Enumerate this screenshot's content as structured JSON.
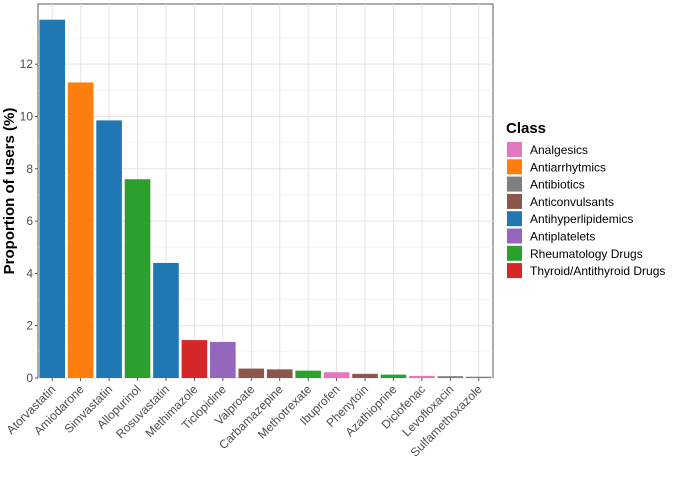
{
  "chart_data": {
    "type": "bar",
    "ylabel": "Proportion of users (%)",
    "xlabel": "",
    "ylim": [
      0,
      14.3
    ],
    "yticks": [
      0,
      2,
      4,
      6,
      8,
      10,
      12
    ],
    "grid": true,
    "legend": {
      "title": "Class",
      "position": "right"
    },
    "classes": [
      {
        "name": "Analgesics",
        "color": "#e377c2"
      },
      {
        "name": "Antiarrhytmics",
        "color": "#ff7f0e"
      },
      {
        "name": "Antibiotics",
        "color": "#7f7f7f"
      },
      {
        "name": "Anticonvulsants",
        "color": "#8c564b"
      },
      {
        "name": "Antihyperlipidemics",
        "color": "#1f77b4"
      },
      {
        "name": "Antiplatelets",
        "color": "#9467bd"
      },
      {
        "name": "Rheumatology Drugs",
        "color": "#2ca02c"
      },
      {
        "name": "Thyroid/Antithyroid Drugs",
        "color": "#d62728"
      }
    ],
    "bars": [
      {
        "drug": "Atorvastatin",
        "value": 13.7,
        "class": "Antihyperlipidemics"
      },
      {
        "drug": "Amiodarone",
        "value": 11.3,
        "class": "Antiarrhytmics"
      },
      {
        "drug": "Simvastatin",
        "value": 9.85,
        "class": "Antihyperlipidemics"
      },
      {
        "drug": "Allopurinol",
        "value": 7.6,
        "class": "Rheumatology Drugs"
      },
      {
        "drug": "Rosuvastatin",
        "value": 4.4,
        "class": "Antihyperlipidemics"
      },
      {
        "drug": "Methimazole",
        "value": 1.45,
        "class": "Thyroid/Antithyroid Drugs"
      },
      {
        "drug": "Ticlopidine",
        "value": 1.38,
        "class": "Antiplatelets"
      },
      {
        "drug": "Valproate",
        "value": 0.36,
        "class": "Anticonvulsants"
      },
      {
        "drug": "Carbamazepine",
        "value": 0.33,
        "class": "Anticonvulsants"
      },
      {
        "drug": "Methotrexate",
        "value": 0.28,
        "class": "Rheumatology Drugs"
      },
      {
        "drug": "Ibuprofen",
        "value": 0.22,
        "class": "Analgesics"
      },
      {
        "drug": "Phenytoin",
        "value": 0.16,
        "class": "Anticonvulsants"
      },
      {
        "drug": "Azathioprine",
        "value": 0.13,
        "class": "Rheumatology Drugs"
      },
      {
        "drug": "Diclofenac",
        "value": 0.08,
        "class": "Analgesics"
      },
      {
        "drug": "Levofloxacin",
        "value": 0.07,
        "class": "Antibiotics"
      },
      {
        "drug": "Sulfamethoxazole",
        "value": 0.05,
        "class": "Antibiotics"
      }
    ]
  }
}
